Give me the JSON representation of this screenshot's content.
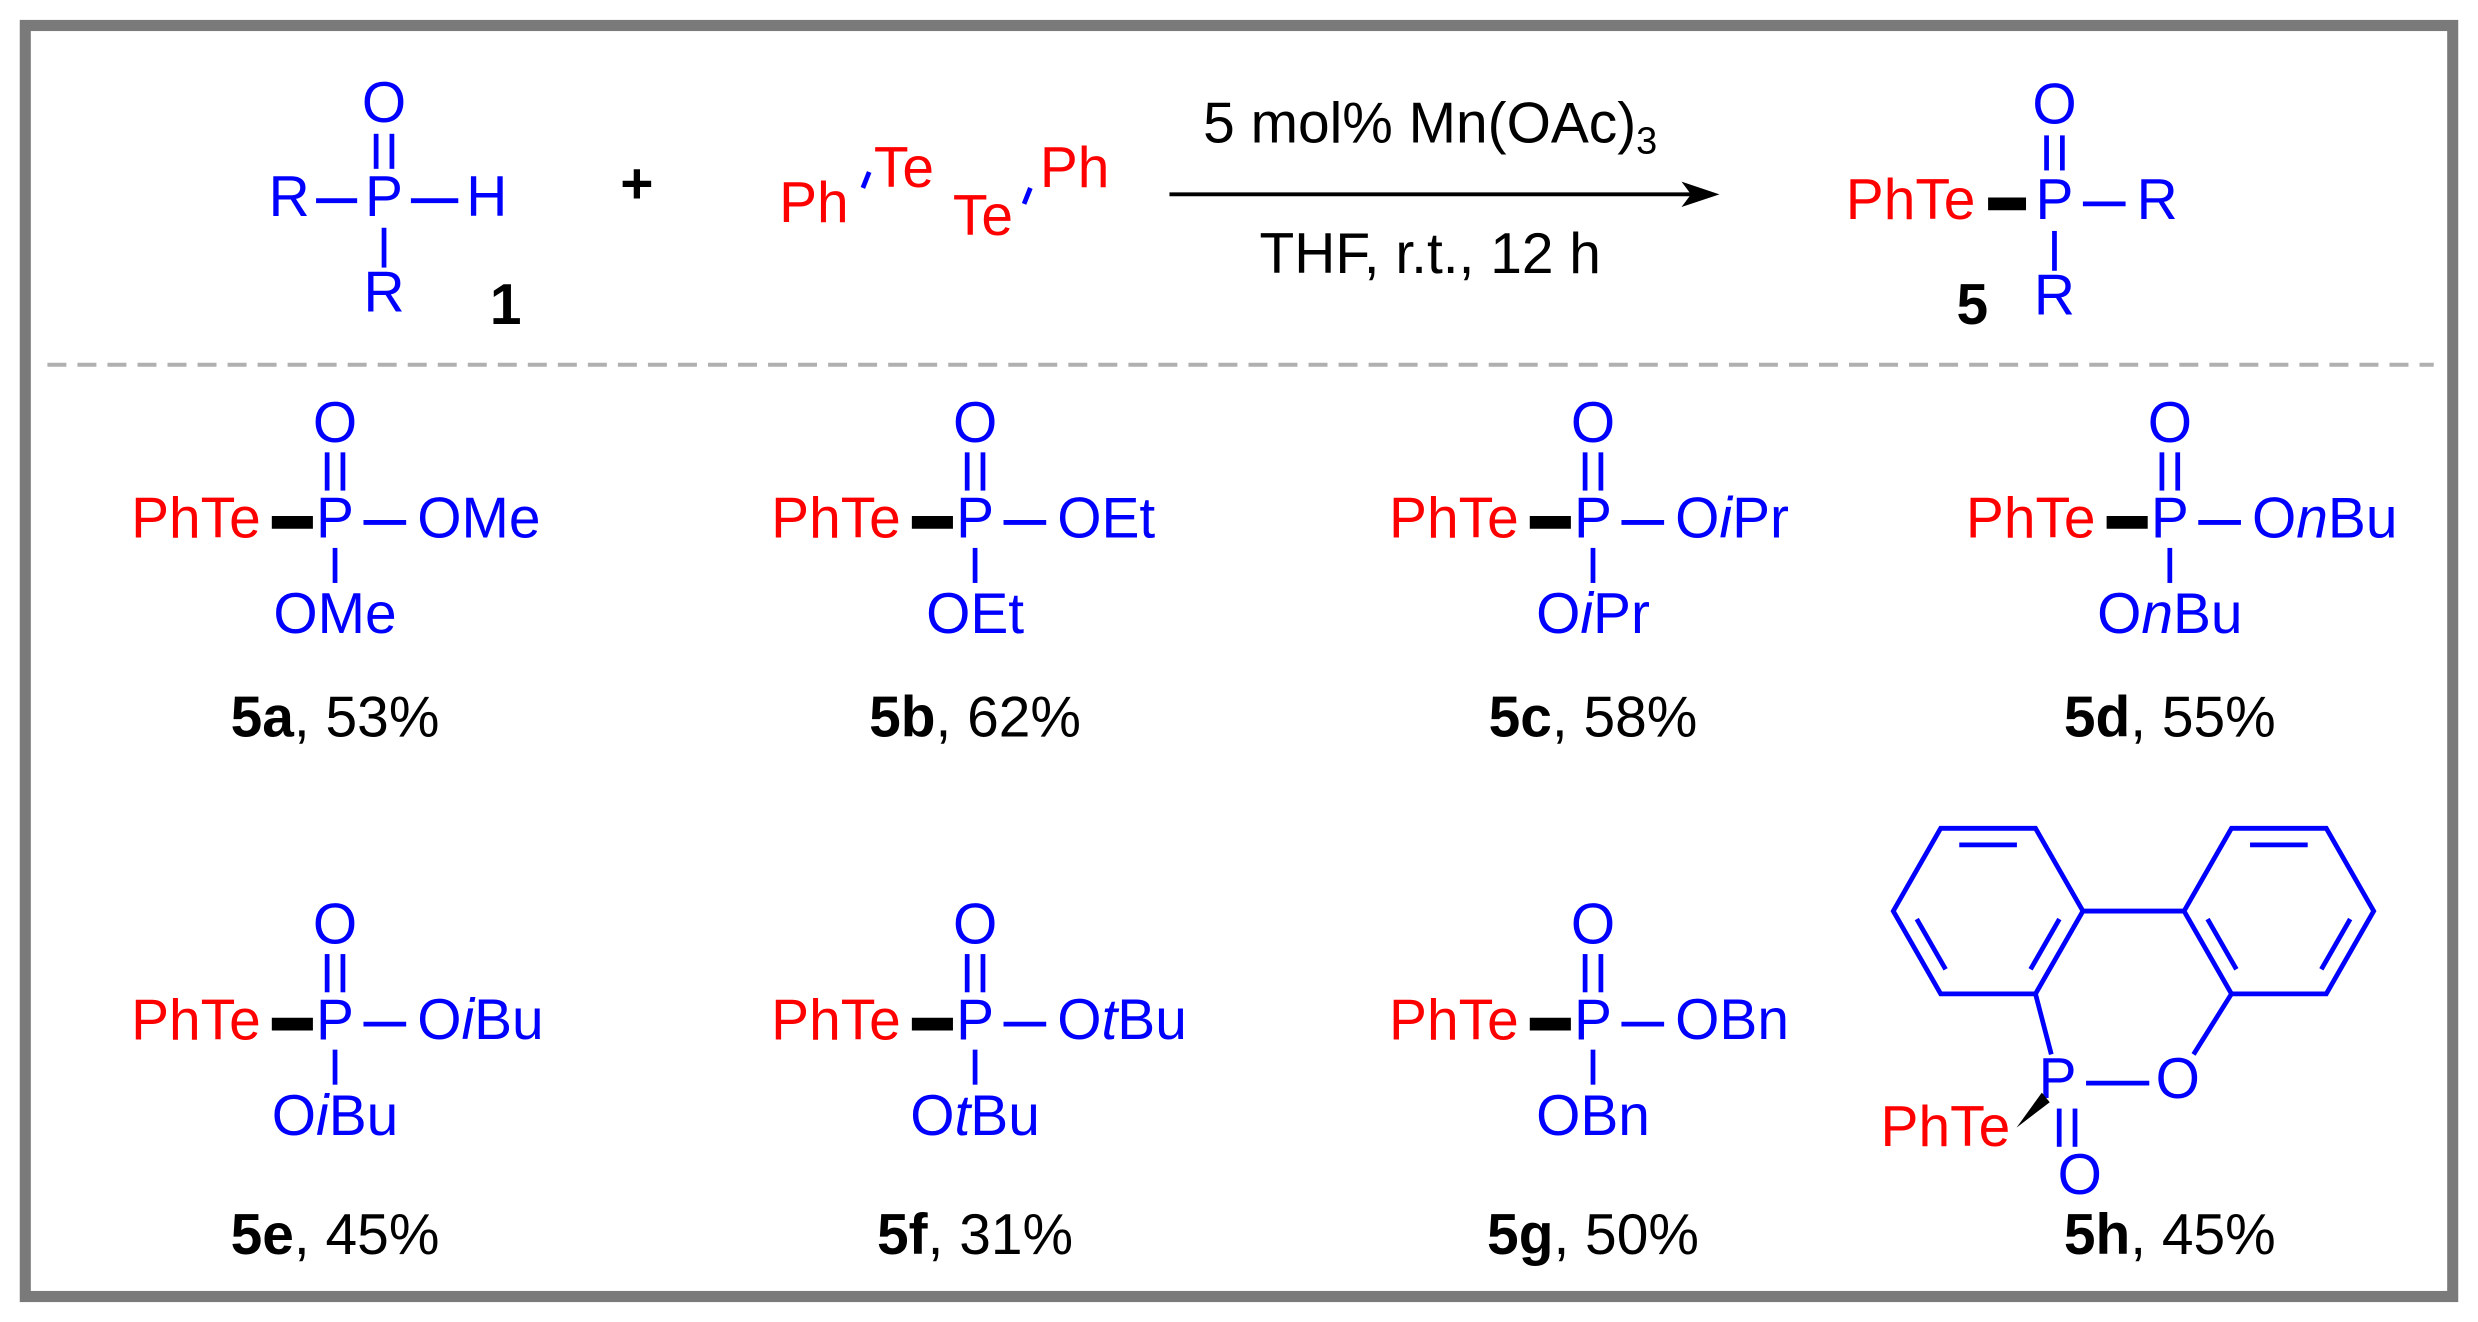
{
  "reaction": {
    "reactant1": {
      "o": "O",
      "p": "P",
      "h": "H",
      "r1": "R",
      "r2": "R",
      "label": "1"
    },
    "plus": "+",
    "reactant2": {
      "ph1": "Ph",
      "te1": "Te",
      "te2": "Te",
      "ph2": "Ph"
    },
    "conditions": {
      "above": [
        "5 mol% Mn(OAc)",
        "3"
      ],
      "below": "THF, r.t., 12 h"
    },
    "product": {
      "te": "PhTe",
      "p": "P",
      "o": "O",
      "r1": "R",
      "r2": "R",
      "label": "5"
    }
  },
  "products": [
    {
      "te": "PhTe",
      "p": "P",
      "o": "O",
      "right": [
        "OMe"
      ],
      "down": [
        "OMe"
      ],
      "id": "5a",
      "yield": ", 53%"
    },
    {
      "te": "PhTe",
      "p": "P",
      "o": "O",
      "right": [
        "OEt"
      ],
      "down": [
        "OEt"
      ],
      "id": "5b",
      "yield": ", 62%"
    },
    {
      "te": "PhTe",
      "p": "P",
      "o": "O",
      "right": [
        "O",
        "i",
        "Pr"
      ],
      "down": [
        "O",
        "i",
        "Pr"
      ],
      "id": "5c",
      "yield": ", 58%"
    },
    {
      "te": "PhTe",
      "p": "P",
      "o": "O",
      "right": [
        "O",
        "n",
        "Bu"
      ],
      "down": [
        "O",
        "n",
        "Bu"
      ],
      "id": "5d",
      "yield": ", 55%"
    },
    {
      "te": "PhTe",
      "p": "P",
      "o": "O",
      "right": [
        "O",
        "i",
        "Bu"
      ],
      "down": [
        "O",
        "i",
        "Bu"
      ],
      "id": "5e",
      "yield": ", 45%"
    },
    {
      "te": "PhTe",
      "p": "P",
      "o": "O",
      "right": [
        "O",
        "t",
        "Bu"
      ],
      "down": [
        "O",
        "t",
        "Bu"
      ],
      "id": "5f",
      "yield": ", 31%"
    },
    {
      "te": "PhTe",
      "p": "P",
      "o": "O",
      "right": [
        "OBn"
      ],
      "down": [
        "OBn"
      ],
      "id": "5g",
      "yield": ", 50%"
    },
    {
      "te": "PhTe",
      "p": "P",
      "ring_o": "O",
      "o": "O",
      "id": "5h",
      "yield": ", 45%"
    }
  ]
}
